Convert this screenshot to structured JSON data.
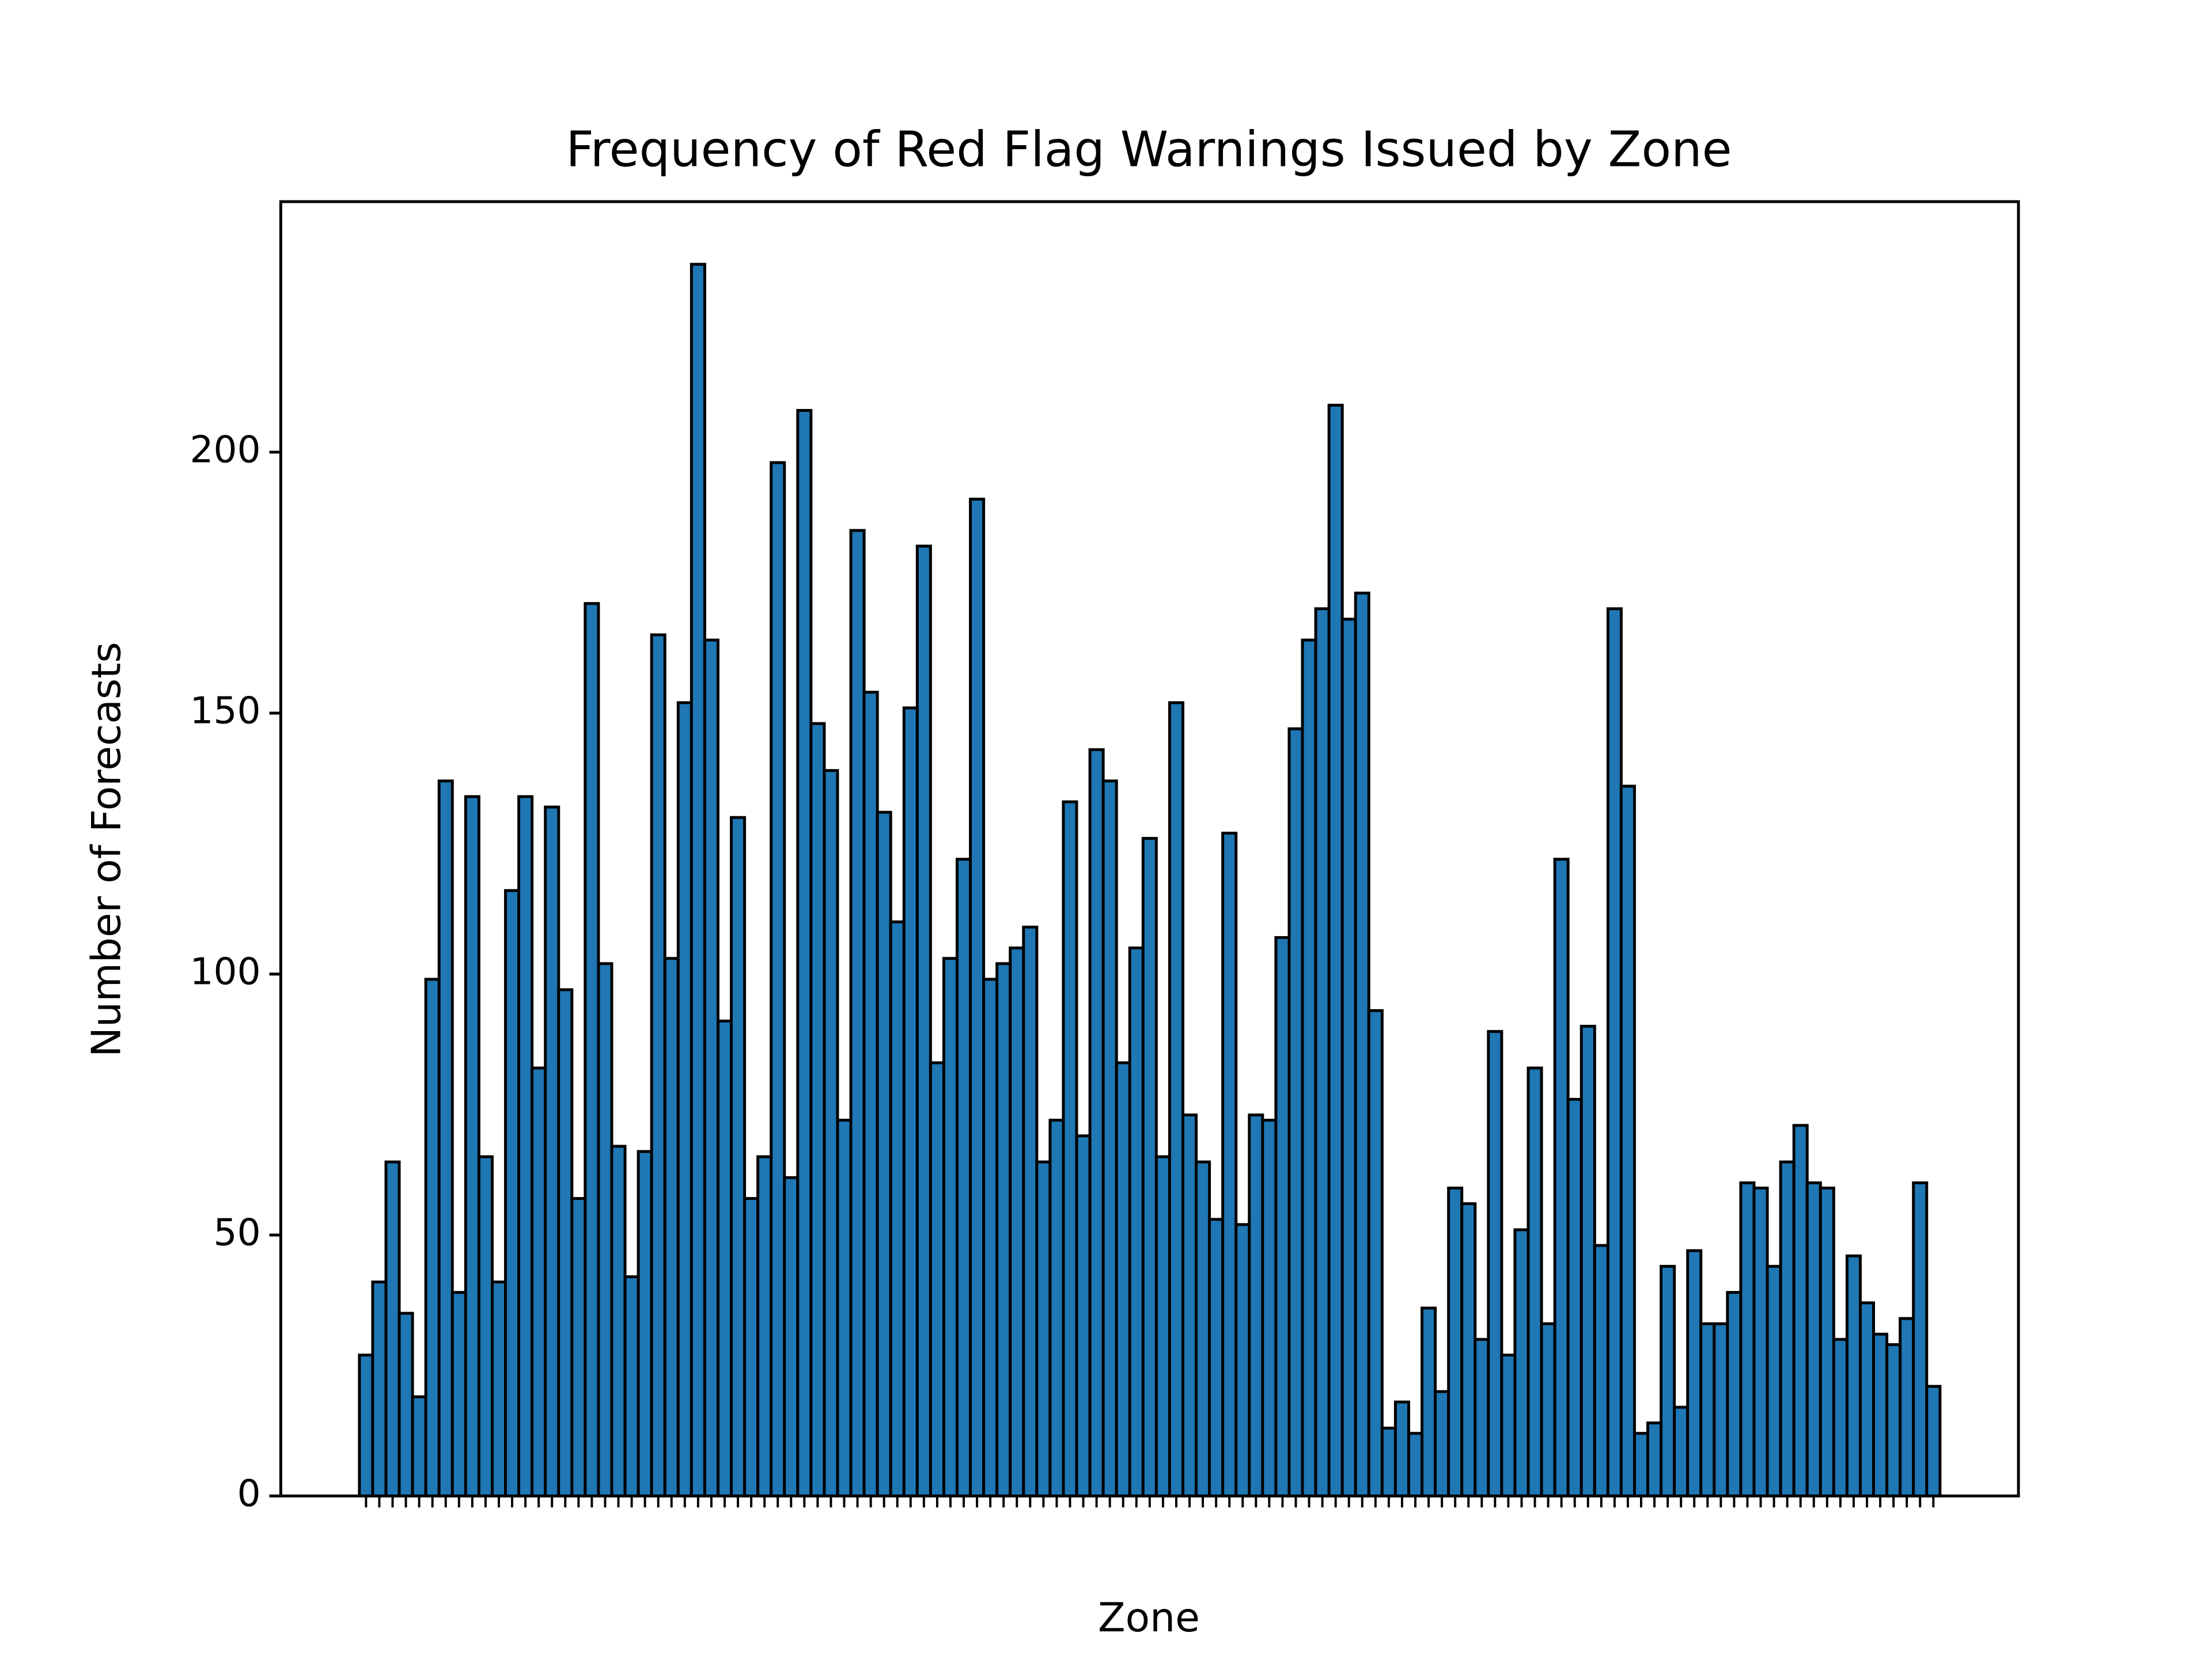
{
  "chart_data": {
    "type": "bar",
    "title": "Frequency of Red Flag Warnings Issued by Zone",
    "xlabel": "Zone",
    "ylabel": "Number of Forecasts",
    "categories": [
      null,
      null,
      null,
      null,
      null,
      null,
      null,
      null,
      null,
      null,
      null,
      null,
      null,
      null,
      null,
      null,
      null,
      null,
      null,
      null,
      null,
      null,
      null,
      null,
      null,
      null,
      null,
      null,
      null,
      null,
      null,
      null,
      null,
      null,
      null,
      null,
      null,
      null,
      null,
      null,
      null,
      null,
      null,
      null,
      null,
      null,
      null,
      null,
      null,
      null,
      null,
      null,
      null,
      null,
      null,
      null,
      null,
      null,
      null,
      null,
      null,
      null,
      null,
      null,
      null,
      null,
      null,
      null,
      null,
      null,
      null,
      null,
      null,
      null,
      null,
      null,
      null,
      null,
      null,
      null,
      null,
      null,
      null,
      null,
      null,
      null,
      null,
      null,
      null,
      null,
      null,
      null,
      null,
      null,
      null,
      null,
      null,
      null,
      null,
      null,
      null,
      null,
      null,
      null,
      null,
      null,
      null,
      null,
      null,
      null,
      null,
      null,
      null,
      null,
      null,
      null,
      null,
      null,
      null
    ],
    "values": [
      27,
      41,
      64,
      35,
      19,
      99,
      137,
      39,
      134,
      65,
      41,
      116,
      134,
      82,
      132,
      97,
      57,
      171,
      102,
      67,
      42,
      66,
      165,
      103,
      152,
      236,
      164,
      91,
      130,
      57,
      65,
      198,
      61,
      208,
      148,
      139,
      72,
      185,
      154,
      131,
      110,
      151,
      182,
      83,
      103,
      122,
      191,
      99,
      102,
      105,
      109,
      64,
      72,
      133,
      69,
      143,
      137,
      83,
      105,
      126,
      65,
      152,
      73,
      64,
      53,
      127,
      52,
      73,
      72,
      107,
      147,
      164,
      170,
      209,
      168,
      173,
      93,
      13,
      18,
      12,
      36,
      20,
      59,
      56,
      30,
      89,
      27,
      51,
      82,
      33,
      122,
      76,
      90,
      48,
      170,
      136,
      12,
      14,
      44,
      17,
      47,
      33,
      33,
      39,
      60,
      59,
      44,
      64,
      71,
      60,
      59,
      30,
      46,
      37,
      31,
      29,
      34,
      60,
      21
    ],
    "color": "#1f77b4",
    "edgecolor": "#000000",
    "ylim": [
      0,
      248
    ],
    "yticks": [
      0,
      50,
      100,
      150,
      200
    ],
    "grid": false
  }
}
